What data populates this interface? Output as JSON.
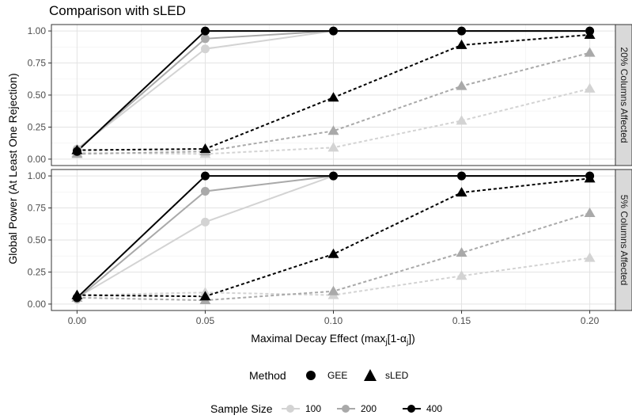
{
  "chart_data": {
    "type": "line",
    "title": "Comparison with sLED",
    "xlabel_main": "Maximal Decay Effect (max",
    "xlabel_sub1": "j",
    "xlabel_mid": "[1-α",
    "xlabel_sub2": "j",
    "xlabel_end": "])",
    "ylabel": "Global Power (At Least One Rejection)",
    "x": [
      0.0,
      0.05,
      0.1,
      0.15,
      0.2
    ],
    "x_tick_labels": [
      "0.00",
      "0.05",
      "0.10",
      "0.15",
      "0.20"
    ],
    "y_tick_labels": [
      "0.00",
      "0.25",
      "0.50",
      "0.75",
      "1.00"
    ],
    "ylim": [
      0,
      1
    ],
    "grid": true,
    "legend_position": "bottom",
    "legend_method_title": "Method",
    "legend_method_items": [
      "GEE",
      "sLED"
    ],
    "legend_size_title": "Sample Size",
    "legend_size_items": [
      "100",
      "200",
      "400"
    ],
    "colors": {
      "100": "#d3d3d3",
      "200": "#a9a9a9",
      "400": "#000000"
    },
    "panels": [
      {
        "strip": "20% Columns Affected",
        "series": [
          {
            "method": "GEE",
            "size": "100",
            "values": [
              0.08,
              0.86,
              1.0,
              1.0,
              1.0
            ]
          },
          {
            "method": "GEE",
            "size": "200",
            "values": [
              0.07,
              0.94,
              1.0,
              1.0,
              1.0
            ]
          },
          {
            "method": "GEE",
            "size": "400",
            "values": [
              0.06,
              1.0,
              1.0,
              1.0,
              1.0
            ]
          },
          {
            "method": "sLED",
            "size": "100",
            "values": [
              0.05,
              0.04,
              0.09,
              0.3,
              0.55
            ]
          },
          {
            "method": "sLED",
            "size": "200",
            "values": [
              0.04,
              0.06,
              0.22,
              0.57,
              0.83
            ]
          },
          {
            "method": "sLED",
            "size": "400",
            "values": [
              0.07,
              0.08,
              0.48,
              0.89,
              0.97
            ]
          }
        ]
      },
      {
        "strip": "5% Columns Affected",
        "series": [
          {
            "method": "GEE",
            "size": "100",
            "values": [
              0.05,
              0.64,
              1.0,
              1.0,
              1.0
            ]
          },
          {
            "method": "GEE",
            "size": "200",
            "values": [
              0.04,
              0.88,
              1.0,
              1.0,
              1.0
            ]
          },
          {
            "method": "GEE",
            "size": "400",
            "values": [
              0.05,
              1.0,
              1.0,
              1.0,
              1.0
            ]
          },
          {
            "method": "sLED",
            "size": "100",
            "values": [
              0.07,
              0.09,
              0.07,
              0.22,
              0.36
            ]
          },
          {
            "method": "sLED",
            "size": "200",
            "values": [
              0.05,
              0.03,
              0.1,
              0.4,
              0.71
            ]
          },
          {
            "method": "sLED",
            "size": "400",
            "values": [
              0.07,
              0.06,
              0.39,
              0.87,
              0.98
            ]
          }
        ]
      }
    ]
  }
}
